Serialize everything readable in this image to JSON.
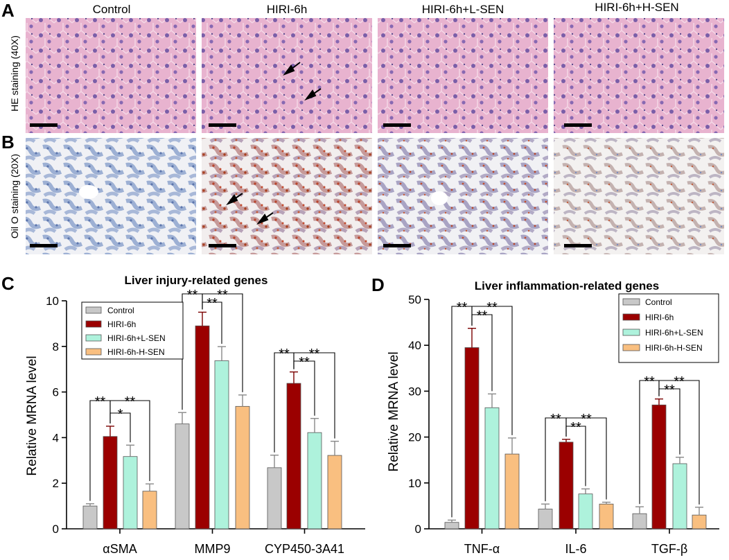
{
  "panels": {
    "A": {
      "letter": "A",
      "row_label": "HE staining (40X)"
    },
    "B": {
      "letter": "B",
      "row_label": "Oil O staining (20X)"
    },
    "C": {
      "letter": "C"
    },
    "D": {
      "letter": "D"
    }
  },
  "groups": [
    "Control",
    "HIRI-6h",
    "HIRI-6h+L-SEN",
    "HIRI-6h+H-SEN"
  ],
  "colors": {
    "Control": "#c8c8c8",
    "HIRI-6h": "#9b0000",
    "L-SEN": "#aef2dc",
    "H-SEN": "#f9bf80",
    "he_tissue": "#e6a8cc",
    "oil_tissue": "#9aaed0"
  },
  "chart_data": [
    {
      "type": "bar",
      "title": "Liver injury-related genes",
      "ylabel": "Relative MRNA level",
      "xlabel": "",
      "ylim": [
        0,
        10
      ],
      "yticks": [
        0,
        2,
        4,
        6,
        8,
        10
      ],
      "categories": [
        "αSMA",
        "MMP9",
        "CYP450-3A41"
      ],
      "series": [
        {
          "name": "Control",
          "values": [
            1.0,
            4.6,
            2.68
          ],
          "errors": [
            0.1,
            0.5,
            0.55
          ]
        },
        {
          "name": "HIRI-6h",
          "values": [
            4.05,
            8.9,
            6.38
          ],
          "errors": [
            0.45,
            0.6,
            0.5
          ]
        },
        {
          "name": "HIRI-6h+L-SEN",
          "values": [
            3.17,
            7.37,
            4.22
          ],
          "errors": [
            0.5,
            0.62,
            0.62
          ]
        },
        {
          "name": "HIRI-6h-H-SEN",
          "values": [
            1.65,
            5.37,
            3.22
          ],
          "errors": [
            0.32,
            0.5,
            0.62
          ]
        }
      ],
      "significance": [
        [
          {
            "from": 0,
            "to": 1,
            "label": "**"
          },
          {
            "from": 1,
            "to": 2,
            "label": "*"
          },
          {
            "from": 1,
            "to": 3,
            "label": "**"
          }
        ],
        [
          {
            "from": 0,
            "to": 1,
            "label": "**"
          },
          {
            "from": 1,
            "to": 2,
            "label": "**"
          },
          {
            "from": 1,
            "to": 3,
            "label": "**"
          }
        ],
        [
          {
            "from": 0,
            "to": 1,
            "label": "**"
          },
          {
            "from": 1,
            "to": 2,
            "label": "**"
          },
          {
            "from": 1,
            "to": 3,
            "label": "**"
          }
        ]
      ],
      "legend": "top-left",
      "grid": false
    },
    {
      "type": "bar",
      "title": "Liver inflammation-related genes",
      "ylabel": "Relative MRNA level",
      "xlabel": "",
      "ylim": [
        0,
        50
      ],
      "yticks": [
        0,
        10,
        20,
        30,
        40,
        50
      ],
      "categories": [
        "TNF-α",
        "IL-6",
        "TGF-β"
      ],
      "series": [
        {
          "name": "Control",
          "values": [
            1.4,
            4.3,
            3.3
          ],
          "errors": [
            0.5,
            1.1,
            1.5
          ]
        },
        {
          "name": "HIRI-6h",
          "values": [
            39.5,
            18.9,
            27.0
          ],
          "errors": [
            4.2,
            0.6,
            1.3
          ]
        },
        {
          "name": "HIRI-6h+L-SEN",
          "values": [
            26.4,
            7.6,
            14.2
          ],
          "errors": [
            3.0,
            1.1,
            1.4
          ]
        },
        {
          "name": "HIRI-6h-H-SEN",
          "values": [
            16.3,
            5.4,
            3.0
          ],
          "errors": [
            3.5,
            0.4,
            1.7
          ]
        }
      ],
      "significance": [
        [
          {
            "from": 0,
            "to": 1,
            "label": "**"
          },
          {
            "from": 1,
            "to": 2,
            "label": "**"
          },
          {
            "from": 1,
            "to": 3,
            "label": "**"
          }
        ],
        [
          {
            "from": 0,
            "to": 1,
            "label": "**"
          },
          {
            "from": 1,
            "to": 2,
            "label": "**"
          },
          {
            "from": 1,
            "to": 3,
            "label": "**"
          }
        ],
        [
          {
            "from": 0,
            "to": 1,
            "label": "**"
          },
          {
            "from": 1,
            "to": 2,
            "label": "**"
          },
          {
            "from": 1,
            "to": 3,
            "label": "**"
          }
        ]
      ],
      "legend": "top-right",
      "grid": false
    }
  ]
}
